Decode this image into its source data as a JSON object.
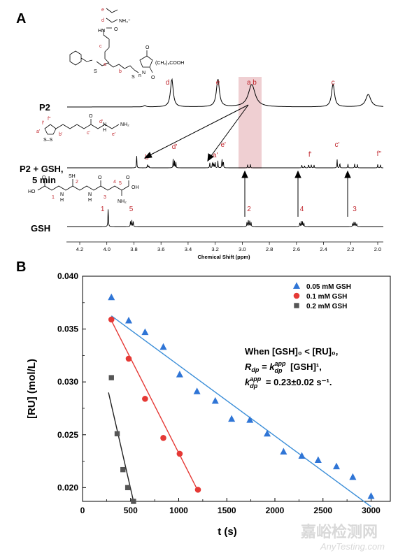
{
  "panel_a": {
    "letter": "A",
    "traces": [
      "P2",
      "P2 + GSH,",
      "5 min",
      "GSH"
    ],
    "x_axis": {
      "title": "Chemical Shift (ppm)",
      "ticks": [
        "4.2",
        "4.0",
        "3.8",
        "3.6",
        "3.4",
        "3.2",
        "3.0",
        "2.8",
        "2.6",
        "2.4",
        "2.2",
        "2.0"
      ]
    },
    "p2_peaks": [
      {
        "label": "d",
        "ppm": 3.52
      },
      {
        "label": "e",
        "ppm": 3.18
      },
      {
        "label": "a b",
        "ppm": 2.93
      },
      {
        "label": "c",
        "ppm": 2.33
      }
    ],
    "mix_peaks": [
      {
        "label": "b'",
        "ppm": 3.7
      },
      {
        "label": "d'",
        "ppm": 3.5
      },
      {
        "label": "a'",
        "ppm": 3.2
      },
      {
        "label": "e'",
        "ppm": 3.14
      },
      {
        "label": "f'",
        "ppm": 2.5
      },
      {
        "label": "c'",
        "ppm": 2.3
      },
      {
        "label": "f''",
        "ppm": 1.99
      }
    ],
    "gsh_peaks": [
      {
        "label": "1",
        "ppm": 3.99
      },
      {
        "label": "5",
        "ppm": 3.82
      },
      {
        "label": "2",
        "ppm": 2.95
      },
      {
        "label": "4",
        "ppm": 2.56
      },
      {
        "label": "3",
        "ppm": 2.17
      }
    ],
    "structure_text": {
      "p2_letters": [
        "e",
        "d",
        "c",
        "a",
        "b"
      ],
      "p2_groups": [
        "NH₃⁺",
        "HN",
        "O",
        "S",
        "S",
        "N",
        "O",
        "O",
        "(CH₂)₅COOH",
        "n"
      ],
      "lipoamide_letters": [
        "f'",
        "f''",
        "a'",
        "b'",
        "c'",
        "d'",
        "e'"
      ],
      "lipoamide_groups": [
        "S–S",
        "O",
        "N",
        "H",
        "NH₂"
      ],
      "gsh_numbers": [
        "1",
        "2",
        "3",
        "4",
        "5"
      ],
      "gsh_groups": [
        "HO",
        "O",
        "SH",
        "N",
        "H",
        "O",
        "N",
        "H",
        "O",
        "OH",
        "NH₂"
      ]
    }
  },
  "panel_b": {
    "letter": "B",
    "equation": {
      "line1": "When [GSH]₀ < [RU]₀,",
      "line2_lhs": "R",
      "line2_sub": "dp",
      "line2_eq": " = k",
      "line2_sup": "app",
      "line2_sub2": "dp",
      "line2_rhs": " [GSH]¹,",
      "line3_k": "k",
      "line3_sup": "app",
      "line3_sub": "dp",
      "line3_rhs": " = 0.23±0.02 s⁻¹."
    }
  },
  "chart_data": {
    "type": "scatter",
    "xlabel": "t (s)",
    "ylabel": "[RU] (mol/L)",
    "xlim": [
      0,
      3200
    ],
    "ylim": [
      0.0187,
      0.04
    ],
    "x_ticks": [
      0,
      500,
      1000,
      1500,
      2000,
      2500,
      3000
    ],
    "y_ticks": [
      0.02,
      0.025,
      0.03,
      0.035,
      0.04
    ],
    "y_tick_labels": [
      "0.020",
      "0.025",
      "0.030",
      "0.035",
      "0.040"
    ],
    "legend_position": "top-right",
    "series": [
      {
        "name": "0.05 mM GSH",
        "marker": "triangle",
        "color": "#2f75d6",
        "line_color": "#3b8ed8",
        "points": [
          [
            300,
            0.038
          ],
          [
            480,
            0.0358
          ],
          [
            650,
            0.0347
          ],
          [
            840,
            0.0333
          ],
          [
            1010,
            0.0307
          ],
          [
            1190,
            0.0291
          ],
          [
            1380,
            0.0282
          ],
          [
            1550,
            0.0265
          ],
          [
            1740,
            0.0264
          ],
          [
            1920,
            0.0251
          ],
          [
            2090,
            0.0234
          ],
          [
            2280,
            0.023
          ],
          [
            2450,
            0.0226
          ],
          [
            2640,
            0.022
          ],
          [
            2810,
            0.021
          ],
          [
            3000,
            0.0192
          ]
        ],
        "fit": [
          [
            300,
            0.03625
          ],
          [
            3000,
            0.0182
          ]
        ]
      },
      {
        "name": "0.1 mM GSH",
        "marker": "circle",
        "color": "#e53935",
        "line_color": "#e53935",
        "points": [
          [
            300,
            0.0359
          ],
          [
            480,
            0.0322
          ],
          [
            650,
            0.0284
          ],
          [
            840,
            0.0247
          ],
          [
            1010,
            0.0232
          ],
          [
            1200,
            0.0198
          ]
        ],
        "fit": [
          [
            300,
            0.0358
          ],
          [
            1200,
            0.0197
          ]
        ]
      },
      {
        "name": "0.2 mM GSH",
        "marker": "square",
        "color": "#555555",
        "line_color": "#222222",
        "points": [
          [
            300,
            0.0304
          ],
          [
            360,
            0.0251
          ],
          [
            420,
            0.0217
          ],
          [
            470,
            0.02
          ],
          [
            530,
            0.0187
          ]
        ],
        "fit": [
          [
            270,
            0.029
          ],
          [
            530,
            0.0187
          ]
        ]
      }
    ]
  },
  "watermark": {
    "cn": "嘉峪检测网",
    "en": "AnyTesting.com"
  }
}
